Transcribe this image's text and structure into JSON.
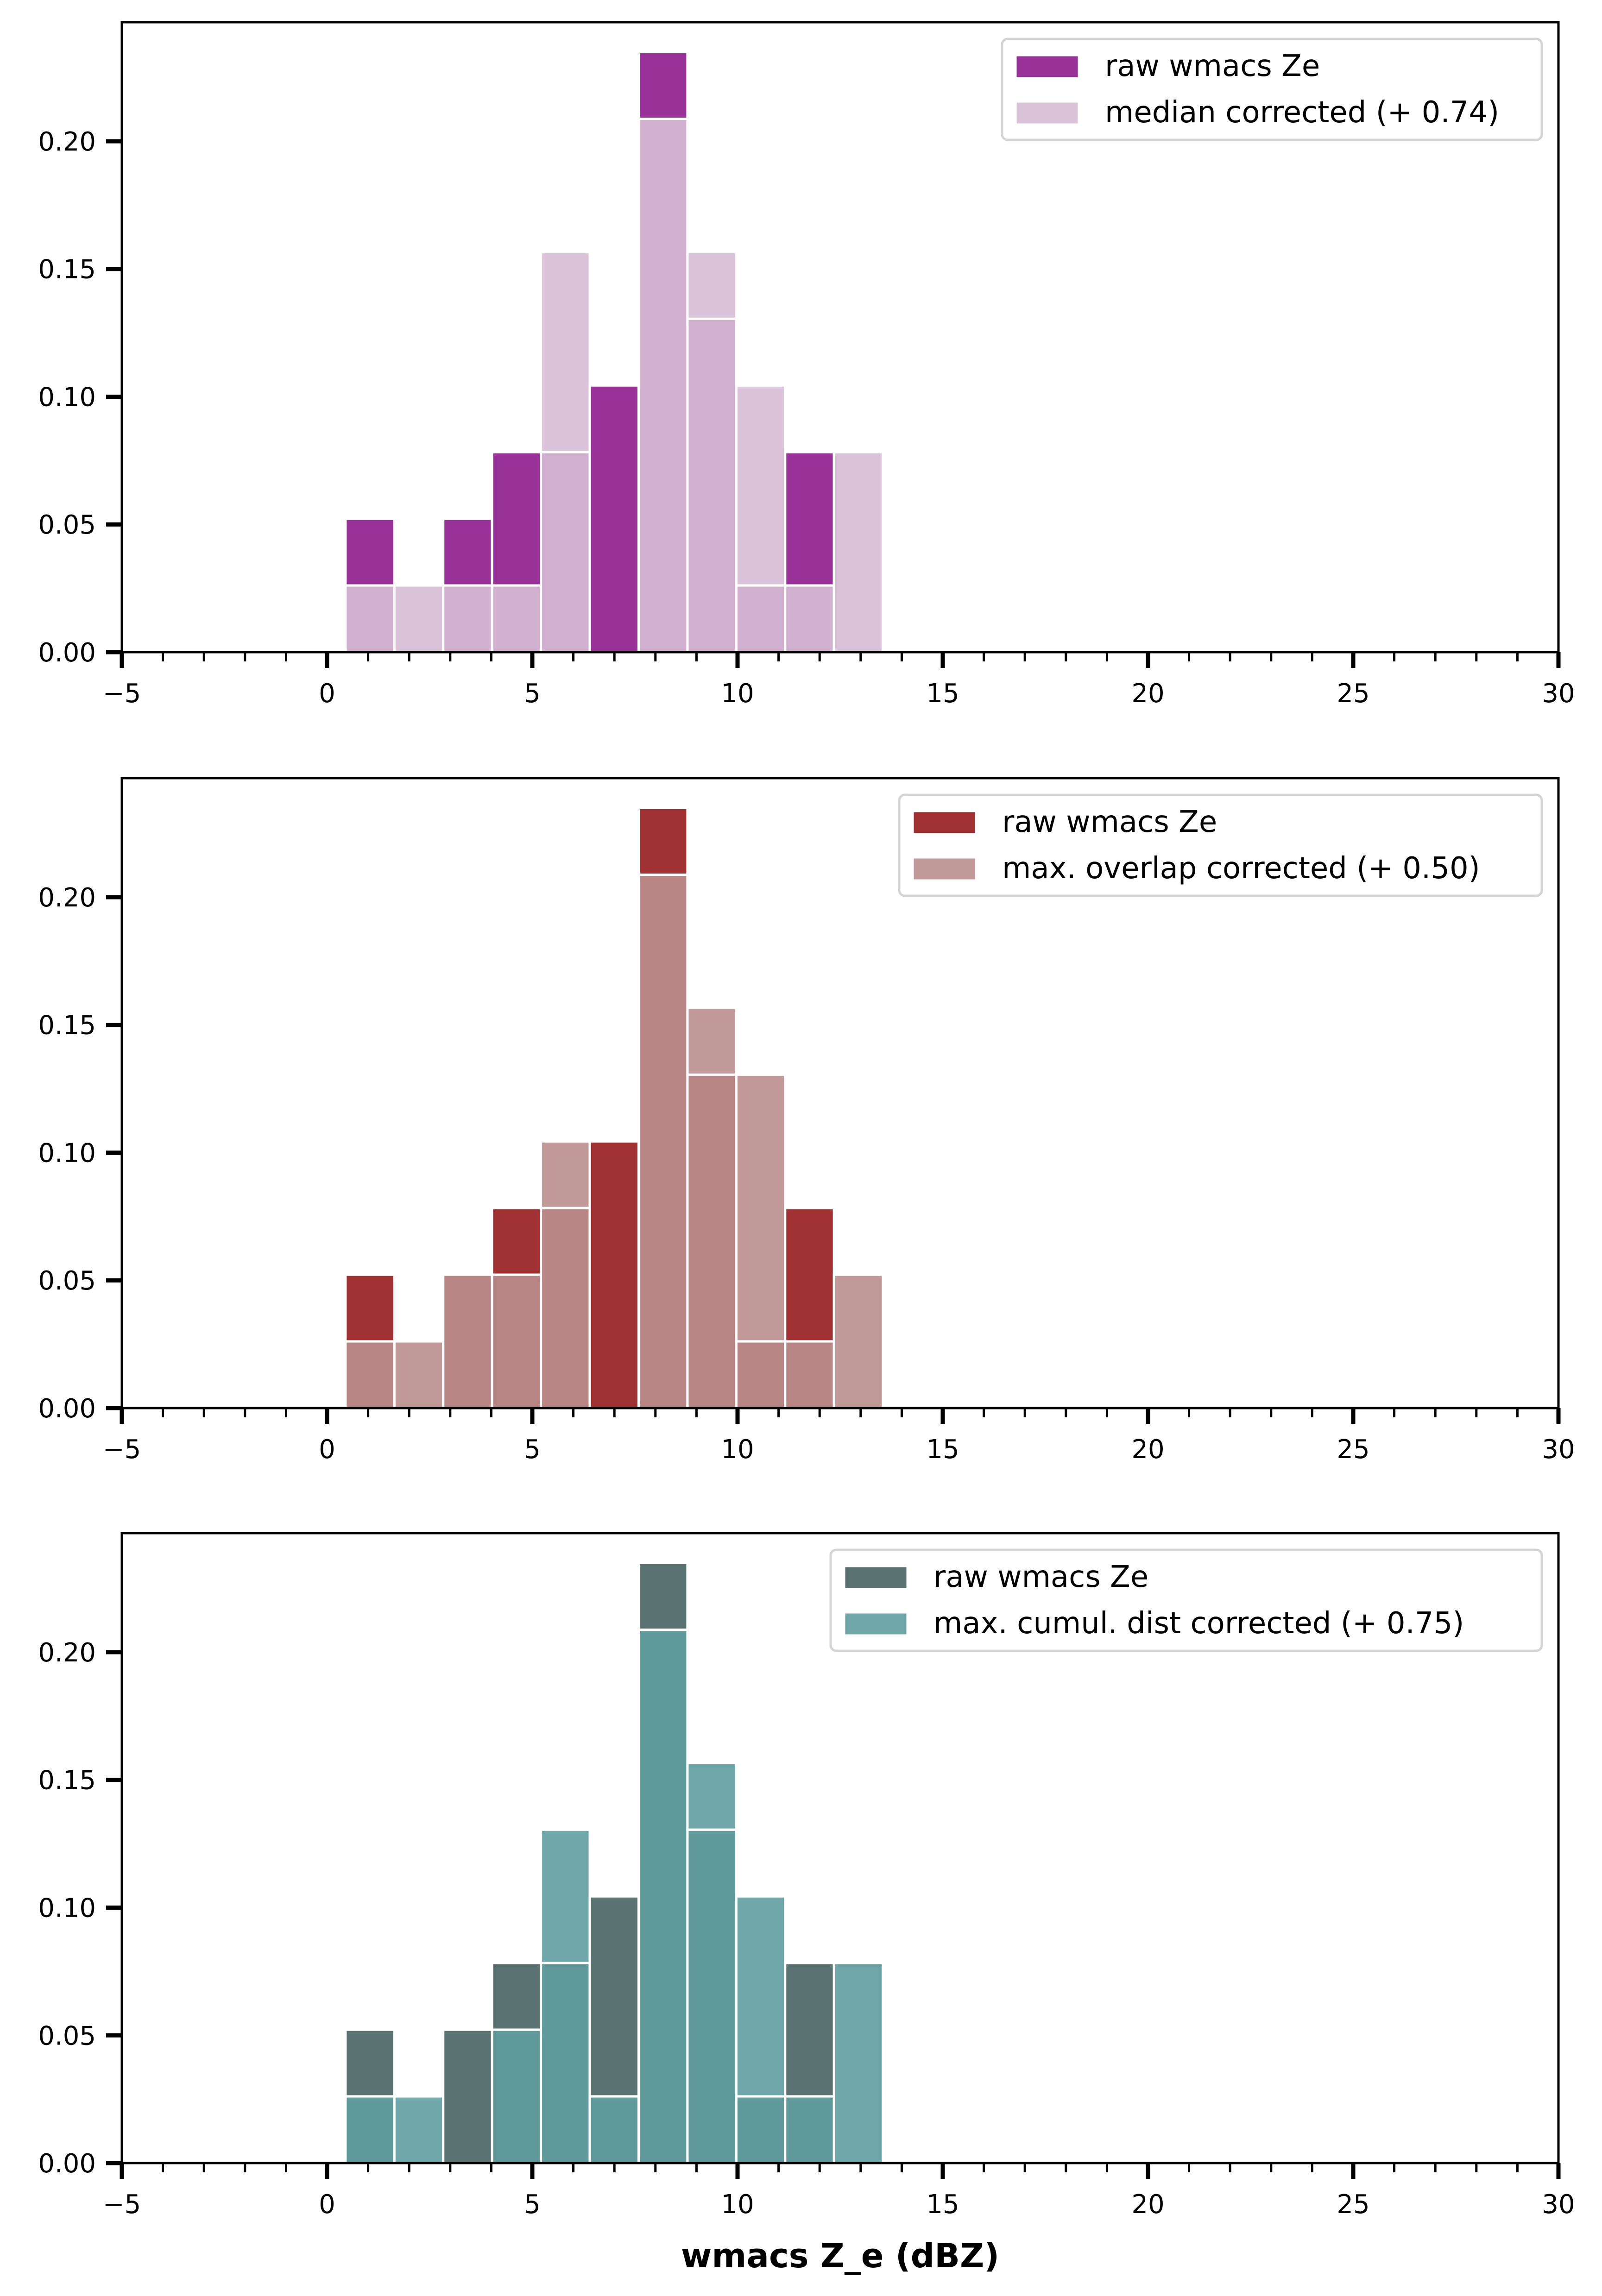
{
  "chart_data": [
    {
      "type": "bar",
      "subtype": "overlaid-histogram",
      "title": "",
      "xlabel": "",
      "ylabel": "",
      "xlim": [
        -5,
        30
      ],
      "ylim": [
        0,
        0.2466
      ],
      "x_ticks": [
        "−5",
        "0",
        "5",
        "10",
        "15",
        "20",
        "25",
        "30"
      ],
      "x_tick_values": [
        -5,
        0,
        5,
        10,
        15,
        20,
        25,
        30
      ],
      "y_ticks": [
        "0.00",
        "0.05",
        "0.10",
        "0.15",
        "0.20"
      ],
      "y_tick_values": [
        0,
        0.05,
        0.1,
        0.15,
        0.2
      ],
      "bin_edges": [
        0.45,
        1.64,
        2.83,
        4.02,
        5.21,
        6.4,
        7.59,
        8.78,
        9.97,
        11.16,
        12.35,
        13.54
      ],
      "legend_position": "top-right",
      "series": [
        {
          "name": "raw wmacs Ze",
          "color": "#993399",
          "values": [
            0.0522,
            0,
            0.0522,
            0.0783,
            0.0783,
            0.1044,
            0.2349,
            0.1305,
            0.0261,
            0.0783,
            0
          ]
        },
        {
          "name": "median corrected (+ 0.74)",
          "color": "#dbc3da",
          "values": [
            0.0261,
            0.0261,
            0.0261,
            0.0261,
            0.1566,
            0,
            0.2088,
            0.1566,
            0.1044,
            0.0261,
            0.0783
          ]
        }
      ],
      "overlap_color": "#d2b0d0"
    },
    {
      "type": "bar",
      "subtype": "overlaid-histogram",
      "title": "",
      "xlabel": "",
      "ylabel": "",
      "xlim": [
        -5,
        30
      ],
      "ylim": [
        0,
        0.2466
      ],
      "x_ticks": [
        "−5",
        "0",
        "5",
        "10",
        "15",
        "20",
        "25",
        "30"
      ],
      "x_tick_values": [
        -5,
        0,
        5,
        10,
        15,
        20,
        25,
        30
      ],
      "y_ticks": [
        "0.00",
        "0.05",
        "0.10",
        "0.15",
        "0.20"
      ],
      "y_tick_values": [
        0,
        0.05,
        0.1,
        0.15,
        0.2
      ],
      "bin_edges": [
        0.45,
        1.64,
        2.83,
        4.02,
        5.21,
        6.4,
        7.59,
        8.78,
        9.97,
        11.16,
        12.35,
        13.54
      ],
      "legend_position": "top-right",
      "series": [
        {
          "name": "raw wmacs Ze",
          "color": "#a13234",
          "values": [
            0.0522,
            0,
            0.0522,
            0.0783,
            0.0783,
            0.1044,
            0.2349,
            0.1305,
            0.0261,
            0.0783,
            0
          ]
        },
        {
          "name": "max. overlap corrected (+ 0.50)",
          "color": "#c29a9a",
          "values": [
            0.0261,
            0.0261,
            0.0522,
            0.0522,
            0.1044,
            0,
            0.2088,
            0.1566,
            0.1305,
            0.0261,
            0.0522
          ]
        }
      ],
      "overlap_color": "#b88685"
    },
    {
      "type": "bar",
      "subtype": "overlaid-histogram",
      "title": "",
      "xlabel": "wmacs Z_e (dBZ)",
      "ylabel": "",
      "xlim": [
        -5,
        30
      ],
      "ylim": [
        0,
        0.2466
      ],
      "x_ticks": [
        "−5",
        "0",
        "5",
        "10",
        "15",
        "20",
        "25",
        "30"
      ],
      "x_tick_values": [
        -5,
        0,
        5,
        10,
        15,
        20,
        25,
        30
      ],
      "y_ticks": [
        "0.00",
        "0.05",
        "0.10",
        "0.15",
        "0.20"
      ],
      "y_tick_values": [
        0,
        0.05,
        0.1,
        0.15,
        0.2
      ],
      "bin_edges": [
        0.45,
        1.64,
        2.83,
        4.02,
        5.21,
        6.4,
        7.59,
        8.78,
        9.97,
        11.16,
        12.35,
        13.54
      ],
      "legend_position": "top-right",
      "series": [
        {
          "name": "raw wmacs Ze",
          "color": "#5a7372",
          "values": [
            0.0522,
            0,
            0.0522,
            0.0783,
            0.0783,
            0.1044,
            0.2349,
            0.1305,
            0.0261,
            0.0783,
            0
          ]
        },
        {
          "name": "max. cumul. dist corrected (+ 0.75)",
          "color": "#70a7a8",
          "values": [
            0.0261,
            0.0261,
            0,
            0.0522,
            0.1305,
            0.0261,
            0.2088,
            0.1566,
            0.1044,
            0.0261,
            0.0783
          ]
        }
      ],
      "overlap_color": "#5f999a"
    }
  ]
}
